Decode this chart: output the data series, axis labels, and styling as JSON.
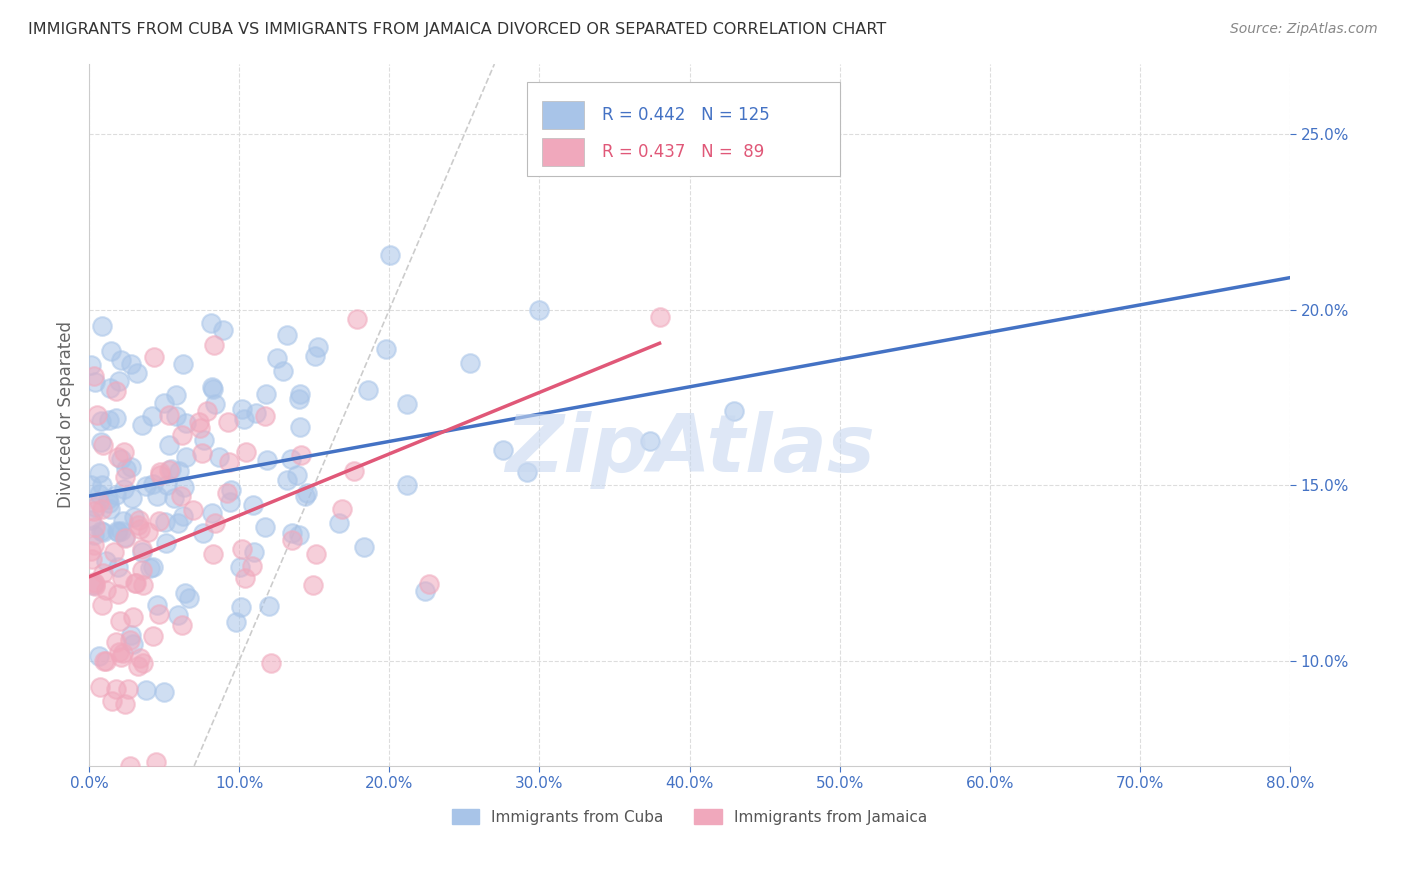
{
  "title": "IMMIGRANTS FROM CUBA VS IMMIGRANTS FROM JAMAICA DIVORCED OR SEPARATED CORRELATION CHART",
  "source": "Source: ZipAtlas.com",
  "ylabel": "Divorced or Separated",
  "ytick_labels": [
    "10.0%",
    "15.0%",
    "20.0%",
    "25.0%"
  ],
  "ytick_values": [
    0.1,
    0.15,
    0.2,
    0.25
  ],
  "xlim": [
    0.0,
    0.8
  ],
  "ylim": [
    0.07,
    0.27
  ],
  "R_cuba": 0.442,
  "N_cuba": 125,
  "R_jamaica": 0.437,
  "N_jamaica": 89,
  "color_cuba": "#a8c4e8",
  "color_jamaica": "#f0a8bc",
  "color_cuba_line": "#4472c4",
  "color_jamaica_line": "#e05878",
  "color_diagonal": "#cccccc",
  "color_axis_labels": "#4472c4",
  "background": "#ffffff",
  "watermark": "ZipAtlas",
  "watermark_color": "#c8d8f0",
  "legend_text_color": "#4472c4",
  "legend_text_jamaica_color": "#e05878"
}
